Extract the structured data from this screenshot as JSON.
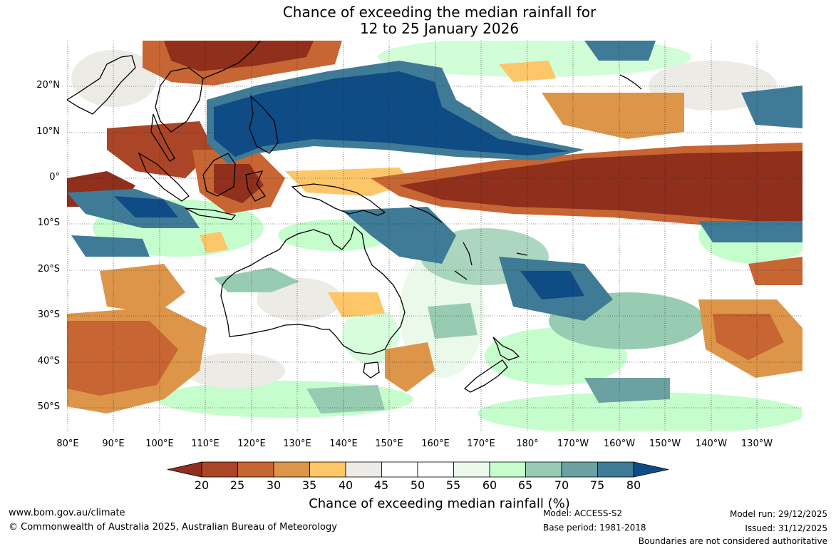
{
  "title": {
    "line1": "Chance of exceeding the median rainfall for",
    "line2": "12 to 25 January 2026"
  },
  "map": {
    "lat_labels": [
      "20°N",
      "10°N",
      "0°",
      "10°S",
      "20°S",
      "30°S",
      "40°S",
      "50°S"
    ],
    "lon_labels": [
      "80°E",
      "90°E",
      "100°E",
      "110°E",
      "120°E",
      "130°E",
      "140°E",
      "150°E",
      "160°E",
      "170°E",
      "180°",
      "170°W",
      "160°W",
      "150°W",
      "140°W",
      "130°W"
    ]
  },
  "colorbar": {
    "ticks": [
      "20",
      "25",
      "30",
      "35",
      "40",
      "45",
      "50",
      "55",
      "60",
      "65",
      "70",
      "75",
      "80"
    ],
    "colors": [
      "#8f2f1c",
      "#ab4527",
      "#c76533",
      "#dd9549",
      "#fcc669",
      "#ecebe6",
      "#ffffff",
      "#ffffff",
      "#eaf9ea",
      "#c6fdcd",
      "#98ccb2",
      "#6ba2a1",
      "#3f7b97",
      "#0f4c86"
    ],
    "label": "Chance of exceeding median rainfall (%)"
  },
  "footer": {
    "website": "www.bom.gov.au/climate",
    "copyright": "© Commonwealth of Australia 2025, Australian Bureau of Meteorology",
    "model": "Model: ACCESS-S2",
    "base_period": "Base period: 1981-2018",
    "model_run": "Model run: 29/12/2025",
    "issued": "Issued: 31/12/2025",
    "disclaimer": "Boundaries are not considered authoritative"
  }
}
